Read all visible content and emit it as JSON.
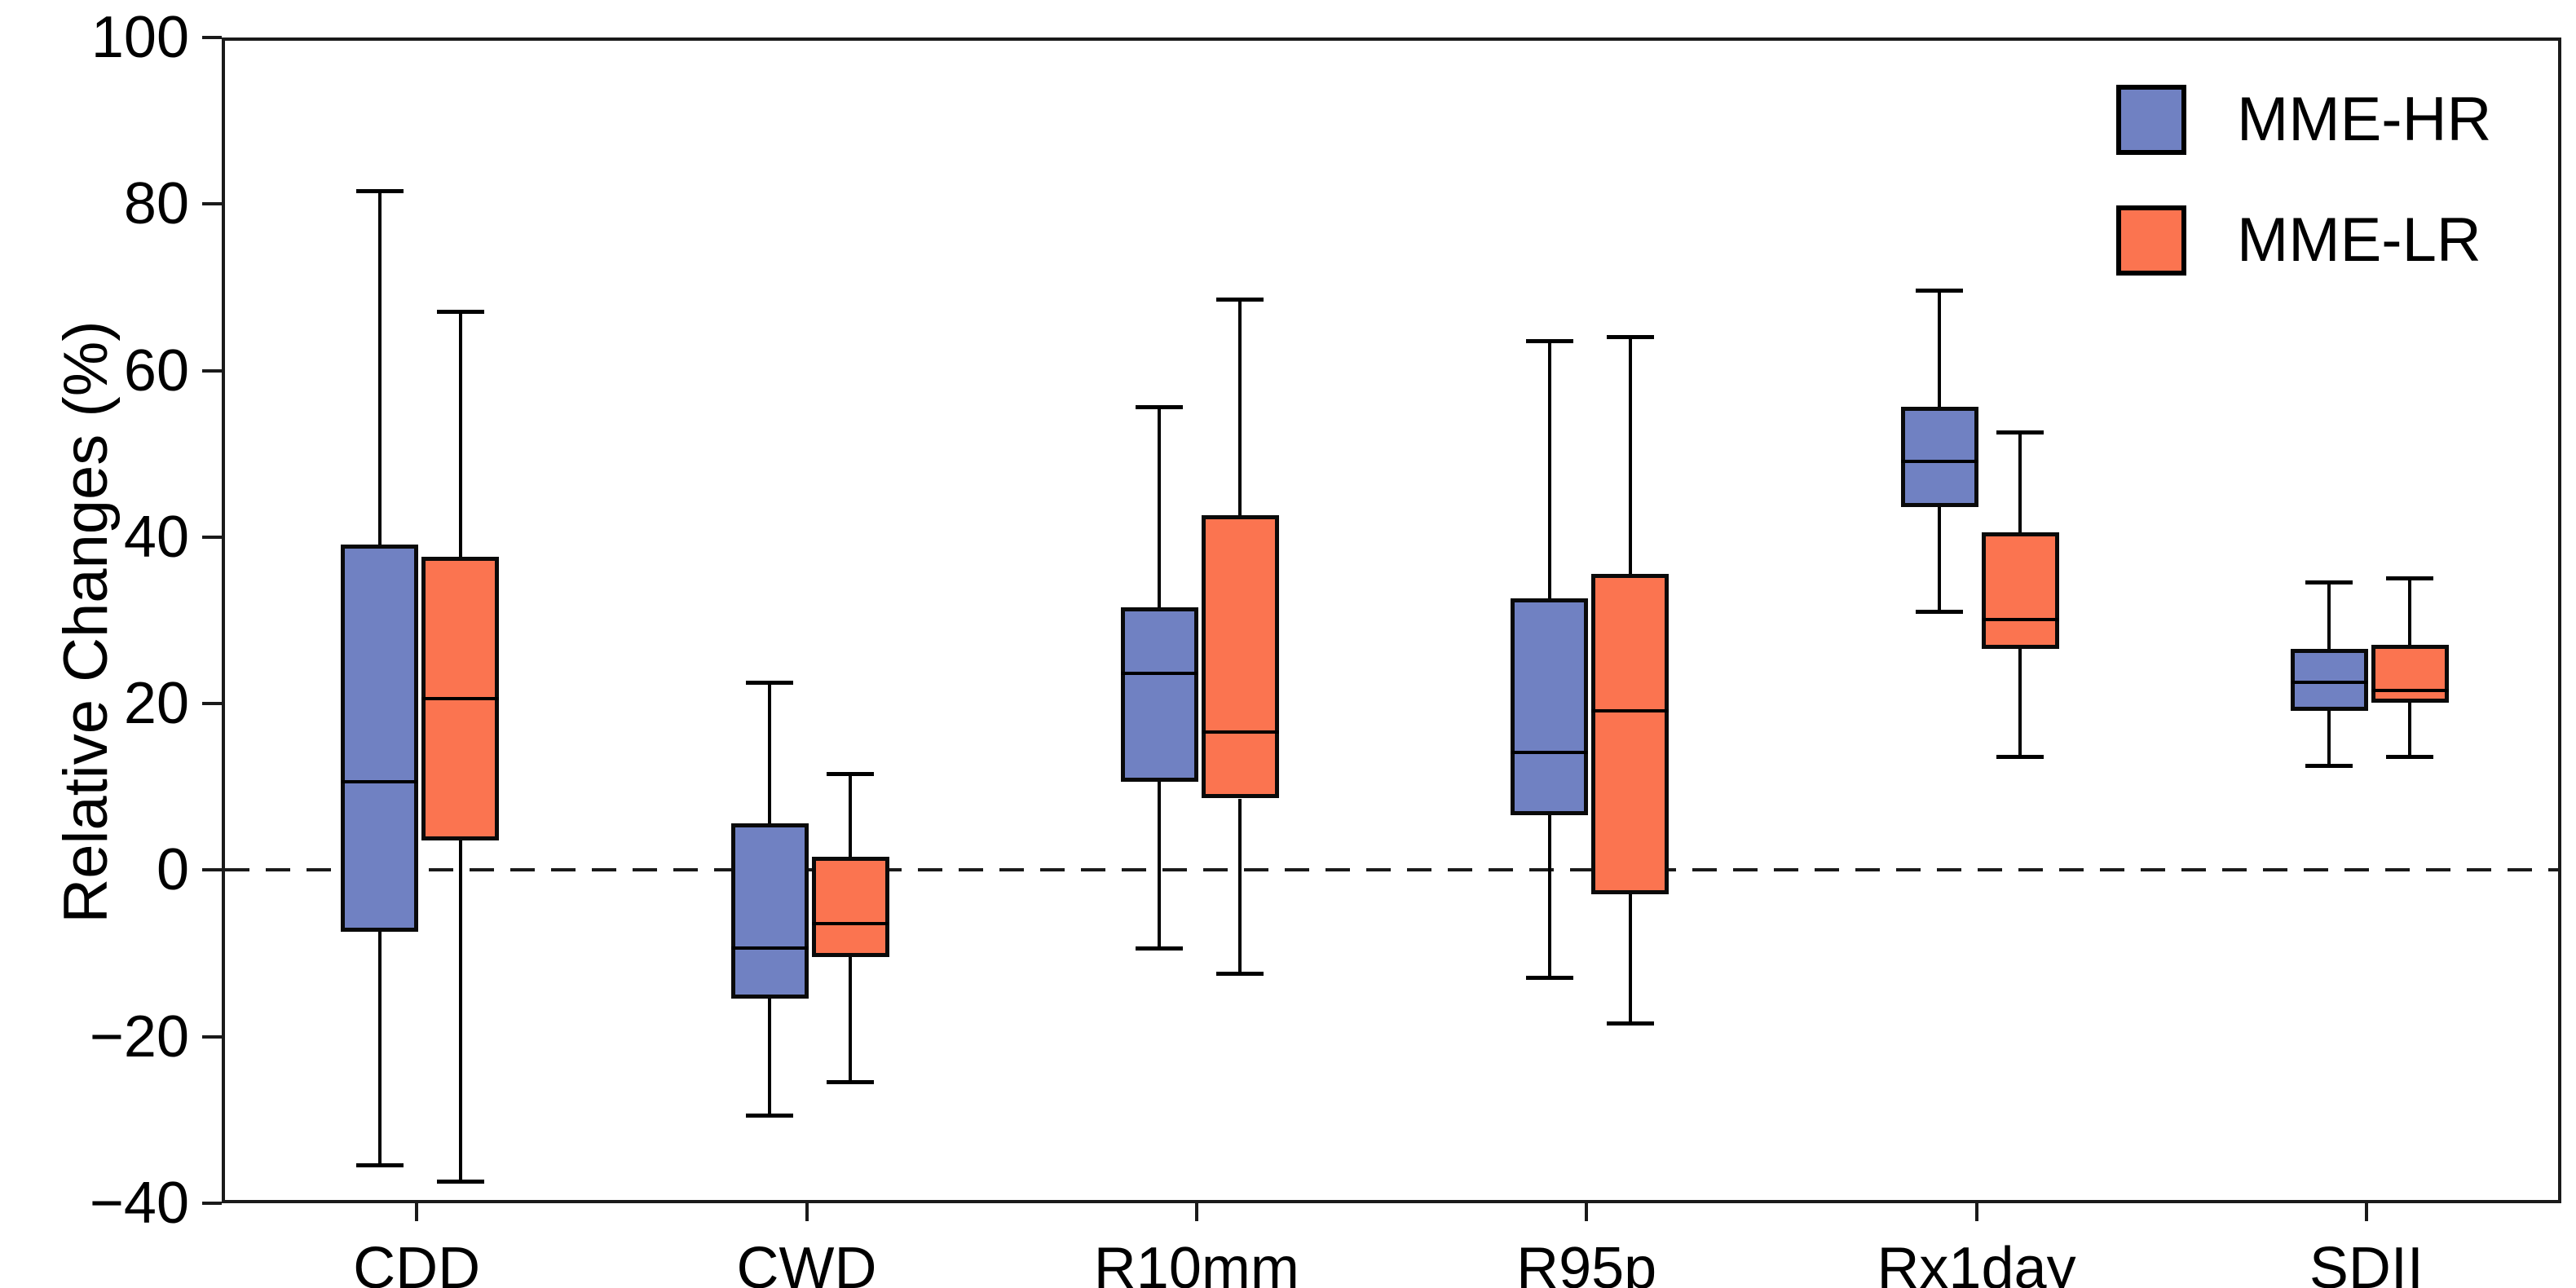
{
  "y_axis": {
    "label": "Relative Changes (%)",
    "ticks": [
      100,
      80,
      60,
      40,
      20,
      0,
      -20,
      -40
    ],
    "min": -40,
    "max": 100
  },
  "x_axis": {
    "categories": [
      "CDD",
      "CWD",
      "R10mm",
      "R95p",
      "Rx1day",
      "SDII"
    ]
  },
  "legend": {
    "items": [
      {
        "label": "MME-HR",
        "color": "#7081C2"
      },
      {
        "label": "MME-LR",
        "color": "#FB7450"
      }
    ]
  },
  "reference_line": {
    "value": 0,
    "style": "dashed"
  },
  "chart_data": {
    "type": "boxplot",
    "title": "",
    "xlabel": "",
    "ylabel": "Relative Changes (%)",
    "ylim": [
      -40,
      100
    ],
    "grid": false,
    "legend_position": "top-right",
    "categories": [
      "CDD",
      "CWD",
      "R10mm",
      "R95p",
      "Rx1day",
      "SDII"
    ],
    "series": [
      {
        "name": "MME-HR",
        "color": "#7081C2",
        "boxes": [
          {
            "category": "CDD",
            "whisker_low": -35,
            "q1": -7,
            "median": 11,
            "q3": 39.5,
            "whisker_high": 82
          },
          {
            "category": "CWD",
            "whisker_low": -29,
            "q1": -15,
            "median": -9,
            "q3": 6,
            "whisker_high": 23
          },
          {
            "category": "R10mm",
            "whisker_low": -9,
            "q1": 11,
            "median": 24,
            "q3": 32,
            "whisker_high": 56
          },
          {
            "category": "R95p",
            "whisker_low": -12.5,
            "q1": 7,
            "median": 14.5,
            "q3": 33,
            "whisker_high": 64
          },
          {
            "category": "Rx1day",
            "whisker_low": 31.5,
            "q1": 44,
            "median": 49.5,
            "q3": 56,
            "whisker_high": 70
          },
          {
            "category": "SDII",
            "whisker_low": 13,
            "q1": 19.5,
            "median": 23,
            "q3": 27,
            "whisker_high": 35
          }
        ]
      },
      {
        "name": "MME-LR",
        "color": "#FB7450",
        "boxes": [
          {
            "category": "CDD",
            "whisker_low": -37,
            "q1": 4,
            "median": 21,
            "q3": 38,
            "whisker_high": 67.5
          },
          {
            "category": "CWD",
            "whisker_low": -25,
            "q1": -10,
            "median": -6,
            "q3": 2,
            "whisker_high": 12
          },
          {
            "category": "R10mm",
            "whisker_low": -12,
            "q1": 9,
            "median": 17,
            "q3": 43,
            "whisker_high": 69
          },
          {
            "category": "R95p",
            "whisker_low": -18,
            "q1": -2.5,
            "median": 19.5,
            "q3": 36,
            "whisker_high": 64.5
          },
          {
            "category": "Rx1day",
            "whisker_low": 14,
            "q1": 27,
            "median": 30.5,
            "q3": 41,
            "whisker_high": 53
          },
          {
            "category": "SDII",
            "whisker_low": 14,
            "q1": 20.5,
            "median": 22,
            "q3": 27.5,
            "whisker_high": 35.5
          }
        ]
      }
    ]
  }
}
